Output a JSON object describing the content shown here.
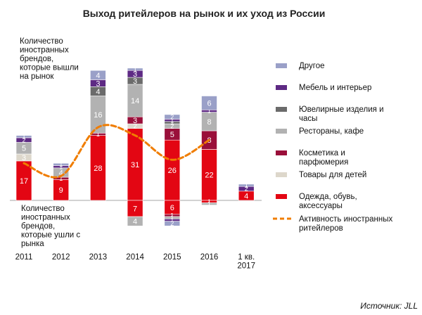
{
  "chart_data": {
    "type": "bar",
    "stacked": true,
    "title": "Выход ритейлеров на рынок и их уход из России",
    "annotation_entered": [
      "Количество",
      "иностранных",
      "брендов,",
      "которые вышли",
      "на рынок"
    ],
    "annotation_exited": [
      "Количество",
      "иностранных",
      "брендов,",
      "которые ушли с",
      "рынка"
    ],
    "categories": [
      [
        "2011"
      ],
      [
        "2012"
      ],
      [
        "2013"
      ],
      [
        "2014"
      ],
      [
        "2015"
      ],
      [
        "2016"
      ],
      [
        "1 кв.",
        "2017"
      ]
    ],
    "ylim": [
      -7,
      37
    ],
    "source": "Источник: JLL",
    "series": [
      {
        "name": "Одежда, обувь, аксессуары",
        "legend_lines": [
          "Одежда, обувь,",
          "аксессуары"
        ],
        "color": "#e30613",
        "entered": [
          17,
          9,
          28,
          31,
          26,
          22,
          4
        ],
        "exited": [
          0,
          0,
          0,
          7,
          6,
          1,
          0
        ],
        "labels_entered": [
          "17",
          "9",
          "28",
          "31",
          "26",
          "22",
          "4"
        ],
        "labels_exited": [
          "",
          "",
          "",
          "7",
          "6",
          "1",
          ""
        ]
      },
      {
        "name": "Товары для детей",
        "legend_lines": [
          "Товары для детей"
        ],
        "color": "#ddd7cb",
        "entered": [
          3,
          0,
          0,
          2,
          0,
          0,
          0
        ],
        "exited": [
          0,
          0,
          0,
          0,
          0,
          0,
          0
        ],
        "labels_entered": [
          "3",
          "",
          "",
          "2",
          "",
          "",
          ""
        ],
        "labels_exited": [
          "",
          "",
          "",
          "",
          "",
          "",
          ""
        ]
      },
      {
        "name": "Косметика и парфюмерия",
        "legend_lines": [
          "Косметика и",
          "парфюмерия"
        ],
        "color": "#9a0f3a",
        "entered": [
          0,
          1,
          1,
          3,
          5,
          8,
          0
        ],
        "exited": [
          0,
          0,
          0,
          0,
          1,
          0,
          0
        ],
        "labels_entered": [
          "",
          "1",
          "1",
          "3",
          "5",
          "8",
          ""
        ],
        "labels_exited": [
          "",
          "",
          "",
          "",
          "1",
          "",
          ""
        ]
      },
      {
        "name": "Рестораны, кафе",
        "legend_lines": [
          "Рестораны, кафе"
        ],
        "color": "#b2b2b2",
        "entered": [
          5,
          4,
          16,
          14,
          2,
          8,
          0
        ],
        "exited": [
          0,
          0,
          0,
          4,
          1,
          1,
          0
        ],
        "labels_entered": [
          "5",
          "4",
          "16",
          "14",
          "2",
          "8",
          ""
        ],
        "labels_exited": [
          "",
          "",
          "",
          "4",
          "1",
          "1",
          ""
        ]
      },
      {
        "name": "Ювелирные изделия и часы",
        "legend_lines": [
          "Ювелирные изделия и",
          "часы"
        ],
        "color": "#6b6b6b",
        "entered": [
          0,
          0,
          4,
          3,
          1,
          0,
          0
        ],
        "exited": [
          0,
          0,
          0,
          0,
          0,
          0,
          0
        ],
        "labels_entered": [
          "",
          "",
          "4",
          "3",
          "1",
          "",
          ""
        ],
        "labels_exited": [
          "",
          "",
          "",
          "",
          "",
          "",
          ""
        ]
      },
      {
        "name": "Мебель и интерьер",
        "legend_lines": [
          "Мебель и интерьер"
        ],
        "color": "#5e2a84",
        "entered": [
          2,
          1,
          3,
          3,
          1,
          1,
          2
        ],
        "exited": [
          0,
          0,
          0,
          0,
          1,
          0,
          0
        ],
        "labels_entered": [
          "2",
          "1",
          "3",
          "3",
          "1",
          "1",
          "2"
        ],
        "labels_exited": [
          "",
          "",
          "",
          "",
          "1",
          "",
          ""
        ]
      },
      {
        "name": "Другое",
        "legend_lines": [
          "Другое"
        ],
        "color": "#9aa0c8",
        "entered": [
          1,
          1,
          4,
          1,
          2,
          6,
          1
        ],
        "exited": [
          0,
          0,
          0,
          0,
          2,
          0,
          0
        ],
        "labels_entered": [
          "1",
          "1",
          "4",
          "1",
          "2",
          "6",
          "1"
        ],
        "labels_exited": [
          "",
          "",
          "",
          "",
          "2",
          "",
          ""
        ]
      }
    ],
    "activity_line": {
      "name": "Активность иностранных ритейлеров",
      "legend_lines": [
        "Активность иностранных",
        "ритейлеров"
      ],
      "color": "#f07d00",
      "values": [
        16,
        10.5,
        31.5,
        28,
        17.5,
        26
      ]
    }
  }
}
